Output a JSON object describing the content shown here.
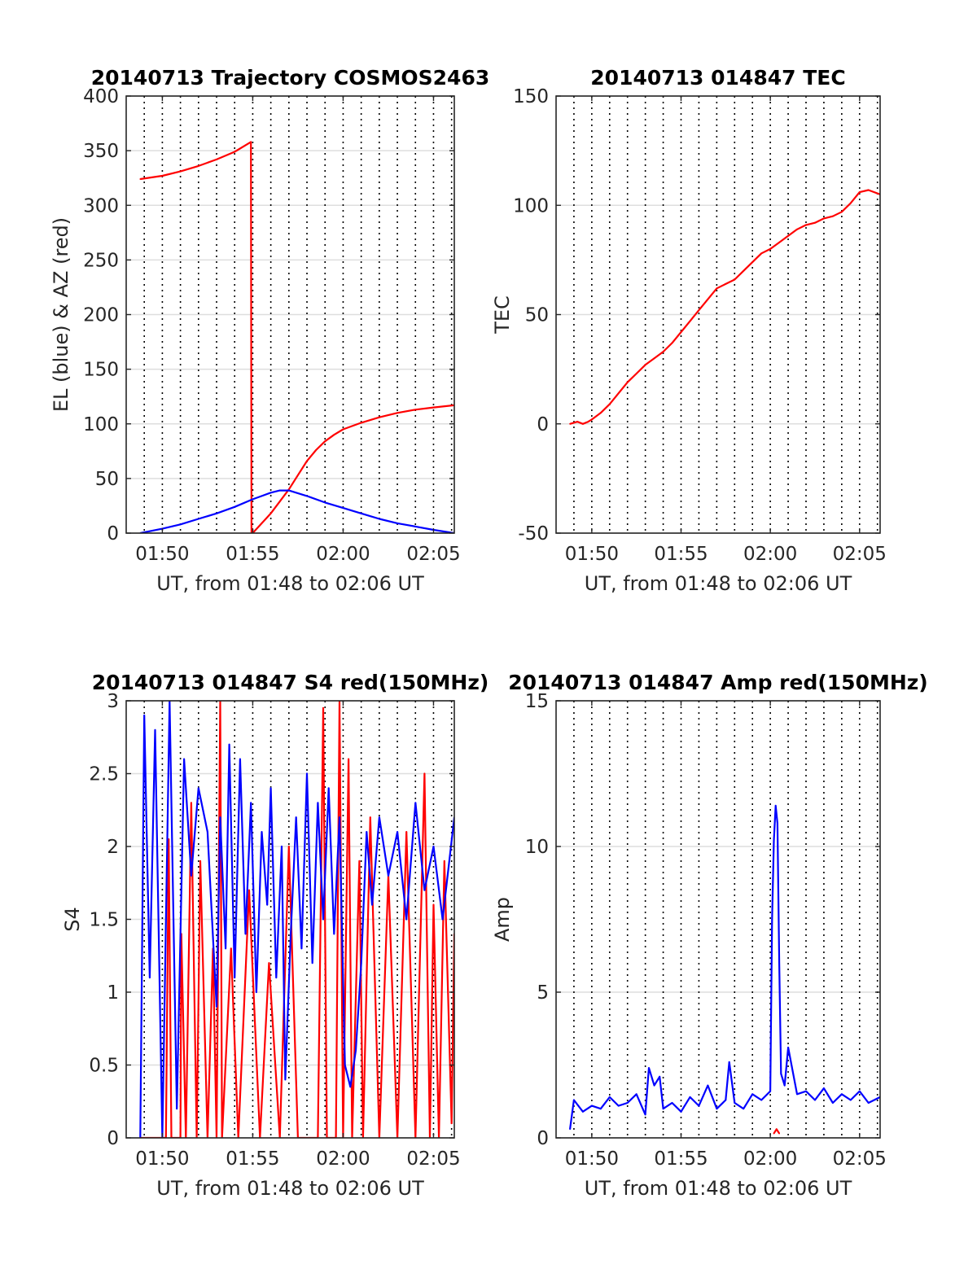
{
  "chart_data": [
    {
      "id": "trajectory",
      "type": "line",
      "title": "20140713 Trajectory COSMOS2463",
      "xlabel": "UT, from 01:48 to 02:06 UT",
      "ylabel": "EL (blue) & AZ (red)",
      "xlim": [
        0,
        18.15
      ],
      "ylim": [
        0,
        400
      ],
      "xticks": [
        2,
        7,
        12,
        17
      ],
      "xtick_labels": [
        "01:50",
        "01:55",
        "02:00",
        "02:05"
      ],
      "yticks": [
        0,
        50,
        100,
        150,
        200,
        250,
        300,
        350,
        400
      ],
      "ytick_labels": [
        "0",
        "50",
        "100",
        "150",
        "200",
        "250",
        "300",
        "350",
        "400"
      ],
      "xgrid_minutes": [
        1,
        2,
        3,
        4,
        5,
        6,
        7,
        8,
        9,
        10,
        11,
        12,
        13,
        14,
        15,
        16,
        17,
        18
      ],
      "grid": true,
      "series": [
        {
          "color": "#ff0000",
          "x": [
            0.78,
            2,
            3,
            4,
            5,
            6,
            6.9,
            6.93,
            7.05,
            7.5,
            8,
            8.5,
            9,
            9.5,
            10,
            10.5,
            11,
            11.5,
            12,
            13,
            14,
            15,
            16,
            17,
            18.15
          ],
          "y": [
            324,
            327,
            331,
            336,
            342,
            349,
            358,
            0,
            1,
            9,
            18,
            29,
            40,
            53,
            66,
            76,
            84,
            90,
            95,
            101,
            106,
            110,
            113,
            115,
            117
          ]
        },
        {
          "color": "#0000ff",
          "x": [
            0.78,
            2,
            3,
            4,
            5,
            6,
            7,
            7.5,
            8,
            8.5,
            9,
            10,
            11,
            12,
            13,
            14,
            15,
            16,
            17,
            18.15
          ],
          "y": [
            0,
            4,
            8,
            13,
            18,
            24,
            31,
            34,
            37,
            39,
            39,
            34,
            28,
            23,
            18,
            13,
            9,
            6,
            3,
            0
          ]
        }
      ]
    },
    {
      "id": "tec",
      "type": "line",
      "title": "20140713 014847 TEC",
      "xlabel": "UT, from 01:48 to 02:06 UT",
      "ylabel": "TEC",
      "xlim": [
        0,
        18.15
      ],
      "ylim": [
        -50,
        150
      ],
      "xticks": [
        2,
        7,
        12,
        17
      ],
      "xtick_labels": [
        "01:50",
        "01:55",
        "02:00",
        "02:05"
      ],
      "yticks": [
        -50,
        0,
        50,
        100,
        150
      ],
      "ytick_labels": [
        "-50",
        "0",
        "50",
        "100",
        "150"
      ],
      "xgrid_minutes": [
        1,
        2,
        3,
        4,
        5,
        6,
        7,
        8,
        9,
        10,
        11,
        12,
        13,
        14,
        15,
        16,
        17,
        18
      ],
      "grid": true,
      "series": [
        {
          "color": "#ff0000",
          "x": [
            0.78,
            1.2,
            1.5,
            1.8,
            2,
            2.5,
            3,
            3.5,
            4,
            4.5,
            5,
            5.5,
            6,
            6.5,
            7,
            7.5,
            8,
            8.5,
            9,
            9.5,
            10,
            10.5,
            11,
            11.5,
            12,
            12.5,
            13,
            13.5,
            14,
            14.5,
            15,
            15.5,
            16,
            16.5,
            17,
            17.5,
            18.15
          ],
          "y": [
            0,
            1,
            0,
            1,
            2,
            5,
            9,
            14,
            19,
            23,
            27,
            30,
            33,
            37,
            42,
            47,
            52,
            57,
            62,
            64,
            66,
            70,
            74,
            78,
            80,
            83,
            86,
            89,
            91,
            92,
            94,
            95,
            97,
            101,
            106,
            107,
            105
          ]
        }
      ]
    },
    {
      "id": "s4",
      "type": "line",
      "title": "20140713 014847 S4 red(150MHz)",
      "xlabel": "UT, from 01:48 to 02:06 UT",
      "ylabel": "S4",
      "xlim": [
        0,
        18.15
      ],
      "ylim": [
        0,
        3
      ],
      "xticks": [
        2,
        7,
        12,
        17
      ],
      "xtick_labels": [
        "01:50",
        "01:55",
        "02:00",
        "02:05"
      ],
      "yticks": [
        0,
        0.5,
        1,
        1.5,
        2,
        2.5,
        3
      ],
      "ytick_labels": [
        "0",
        "0.5",
        "1",
        "1.5",
        "2",
        "2.5",
        "3"
      ],
      "xgrid_minutes": [
        1,
        2,
        3,
        4,
        5,
        6,
        7,
        8,
        9,
        10,
        11,
        12,
        13,
        14,
        15,
        16,
        17,
        18
      ],
      "grid": true,
      "series": [
        {
          "color": "#ff0000",
          "x": [
            0.78,
            2.2,
            2.35,
            2.5,
            3,
            3.05,
            3.3,
            3.6,
            3.9,
            4.1,
            4.5,
            4.8,
            5,
            5.2,
            5.3,
            5.8,
            6.2,
            6.8,
            7.4,
            7.9,
            8.5,
            9,
            9.5,
            10.6,
            10.9,
            11.1,
            11.6,
            11.8,
            12,
            12.3,
            12.5,
            12.9,
            13.1,
            13.5,
            14,
            14.5,
            15,
            15.5,
            16,
            16.5,
            16.8,
            17,
            17.3,
            17.6,
            18,
            18.15
          ],
          "y": [
            0,
            0,
            2.05,
            0,
            0,
            1.4,
            0,
            2.3,
            0,
            1.9,
            0,
            1.3,
            0,
            3,
            0,
            1.3,
            0,
            1.7,
            0,
            1.2,
            0,
            2,
            0,
            0,
            2.95,
            0,
            0,
            3,
            0,
            2.6,
            0,
            1.9,
            0,
            2.2,
            0,
            1.8,
            0,
            2.1,
            0,
            2.5,
            0,
            1.6,
            0,
            1.9,
            0.1,
            1.4
          ]
        },
        {
          "color": "#0000ff",
          "x": [
            0.78,
            1,
            1.3,
            1.6,
            2,
            2.4,
            2.8,
            3.2,
            3.6,
            4,
            4.5,
            5,
            5.2,
            5.5,
            5.7,
            6,
            6.3,
            6.6,
            6.9,
            7.2,
            7.5,
            7.8,
            8,
            8.3,
            8.6,
            8.8,
            9.1,
            9.4,
            9.7,
            10,
            10.3,
            10.6,
            10.9,
            11.2,
            11.5,
            11.8,
            12.1,
            12.4,
            12.7,
            13,
            13.3,
            13.6,
            14,
            14.5,
            15,
            15.5,
            16,
            16.5,
            17,
            17.5,
            18.15
          ],
          "y": [
            0,
            2.9,
            1.1,
            2.8,
            0,
            3,
            0.2,
            2.6,
            1.8,
            2.4,
            2.1,
            0.9,
            2.2,
            1.3,
            2.7,
            1.1,
            2.6,
            1.4,
            2.3,
            1.0,
            2.1,
            1.6,
            2.4,
            1.1,
            2.0,
            0.4,
            1.4,
            2.2,
            1.3,
            2.5,
            1.2,
            2.3,
            1.5,
            2.4,
            1.4,
            2.2,
            0.5,
            0.35,
            0.6,
            1.2,
            2.1,
            1.6,
            2.2,
            1.8,
            2.1,
            1.5,
            2.3,
            1.7,
            2.0,
            1.5,
            2.2
          ]
        }
      ]
    },
    {
      "id": "amp",
      "type": "line",
      "title": "20140713 014847 Amp red(150MHz)",
      "xlabel": "UT, from 01:48 to 02:06 UT",
      "ylabel": "Amp",
      "xlim": [
        0,
        18.15
      ],
      "ylim": [
        0,
        15
      ],
      "xticks": [
        2,
        7,
        12,
        17
      ],
      "xtick_labels": [
        "01:50",
        "01:55",
        "02:00",
        "02:05"
      ],
      "yticks": [
        0,
        5,
        10,
        15
      ],
      "ytick_labels": [
        "0",
        "5",
        "10",
        "15"
      ],
      "xgrid_minutes": [
        1,
        2,
        3,
        4,
        5,
        6,
        7,
        8,
        9,
        10,
        11,
        12,
        13,
        14,
        15,
        16,
        17,
        18
      ],
      "grid": true,
      "series": [
        {
          "color": "#ff0000",
          "x": [
            12.2,
            12.35,
            12.5
          ],
          "y": [
            0.15,
            0.3,
            0.15
          ]
        },
        {
          "color": "#0000ff",
          "x": [
            0.78,
            1,
            1.5,
            2,
            2.5,
            3,
            3.5,
            4,
            4.5,
            5,
            5.2,
            5.5,
            5.8,
            6,
            6.5,
            7,
            7.5,
            8,
            8.5,
            9,
            9.5,
            9.7,
            10,
            10.5,
            11,
            11.5,
            12,
            12.1,
            12.2,
            12.3,
            12.4,
            12.5,
            12.6,
            12.8,
            13,
            13.5,
            14,
            14.5,
            15,
            15.5,
            16,
            16.5,
            17,
            17.5,
            18.15
          ],
          "y": [
            0.3,
            1.3,
            0.9,
            1.1,
            1.0,
            1.4,
            1.1,
            1.2,
            1.5,
            0.8,
            2.4,
            1.8,
            2.1,
            1.0,
            1.2,
            0.9,
            1.4,
            1.1,
            1.8,
            1.0,
            1.3,
            2.6,
            1.2,
            1.0,
            1.5,
            1.3,
            1.6,
            7.5,
            10.2,
            11.4,
            10.8,
            6.0,
            2.2,
            1.8,
            3.1,
            1.5,
            1.6,
            1.3,
            1.7,
            1.2,
            1.5,
            1.3,
            1.6,
            1.2,
            1.4
          ]
        }
      ]
    }
  ]
}
